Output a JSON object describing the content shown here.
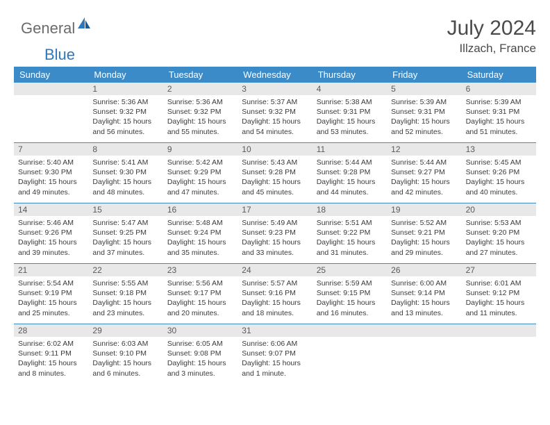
{
  "logo": {
    "text1": "General",
    "text2": "Blue"
  },
  "colors": {
    "header_bg": "#3b8bc9",
    "header_text": "#ffffff",
    "daynum_bg": "#e8e8e8",
    "daynum_text": "#5a5a5a",
    "body_text": "#3a3a3a",
    "title_text": "#4a4a4a",
    "logo_gray": "#6b6b6b",
    "logo_blue": "#2f77ba"
  },
  "title": "July 2024",
  "location": "Illzach, France",
  "day_headers": [
    "Sunday",
    "Monday",
    "Tuesday",
    "Wednesday",
    "Thursday",
    "Friday",
    "Saturday"
  ],
  "weeks": [
    [
      null,
      {
        "n": "1",
        "sr": "5:36 AM",
        "ss": "9:32 PM",
        "dl": "15 hours and 56 minutes."
      },
      {
        "n": "2",
        "sr": "5:36 AM",
        "ss": "9:32 PM",
        "dl": "15 hours and 55 minutes."
      },
      {
        "n": "3",
        "sr": "5:37 AM",
        "ss": "9:32 PM",
        "dl": "15 hours and 54 minutes."
      },
      {
        "n": "4",
        "sr": "5:38 AM",
        "ss": "9:31 PM",
        "dl": "15 hours and 53 minutes."
      },
      {
        "n": "5",
        "sr": "5:39 AM",
        "ss": "9:31 PM",
        "dl": "15 hours and 52 minutes."
      },
      {
        "n": "6",
        "sr": "5:39 AM",
        "ss": "9:31 PM",
        "dl": "15 hours and 51 minutes."
      }
    ],
    [
      {
        "n": "7",
        "sr": "5:40 AM",
        "ss": "9:30 PM",
        "dl": "15 hours and 49 minutes."
      },
      {
        "n": "8",
        "sr": "5:41 AM",
        "ss": "9:30 PM",
        "dl": "15 hours and 48 minutes."
      },
      {
        "n": "9",
        "sr": "5:42 AM",
        "ss": "9:29 PM",
        "dl": "15 hours and 47 minutes."
      },
      {
        "n": "10",
        "sr": "5:43 AM",
        "ss": "9:28 PM",
        "dl": "15 hours and 45 minutes."
      },
      {
        "n": "11",
        "sr": "5:44 AM",
        "ss": "9:28 PM",
        "dl": "15 hours and 44 minutes."
      },
      {
        "n": "12",
        "sr": "5:44 AM",
        "ss": "9:27 PM",
        "dl": "15 hours and 42 minutes."
      },
      {
        "n": "13",
        "sr": "5:45 AM",
        "ss": "9:26 PM",
        "dl": "15 hours and 40 minutes."
      }
    ],
    [
      {
        "n": "14",
        "sr": "5:46 AM",
        "ss": "9:26 PM",
        "dl": "15 hours and 39 minutes."
      },
      {
        "n": "15",
        "sr": "5:47 AM",
        "ss": "9:25 PM",
        "dl": "15 hours and 37 minutes."
      },
      {
        "n": "16",
        "sr": "5:48 AM",
        "ss": "9:24 PM",
        "dl": "15 hours and 35 minutes."
      },
      {
        "n": "17",
        "sr": "5:49 AM",
        "ss": "9:23 PM",
        "dl": "15 hours and 33 minutes."
      },
      {
        "n": "18",
        "sr": "5:51 AM",
        "ss": "9:22 PM",
        "dl": "15 hours and 31 minutes."
      },
      {
        "n": "19",
        "sr": "5:52 AM",
        "ss": "9:21 PM",
        "dl": "15 hours and 29 minutes."
      },
      {
        "n": "20",
        "sr": "5:53 AM",
        "ss": "9:20 PM",
        "dl": "15 hours and 27 minutes."
      }
    ],
    [
      {
        "n": "21",
        "sr": "5:54 AM",
        "ss": "9:19 PM",
        "dl": "15 hours and 25 minutes."
      },
      {
        "n": "22",
        "sr": "5:55 AM",
        "ss": "9:18 PM",
        "dl": "15 hours and 23 minutes."
      },
      {
        "n": "23",
        "sr": "5:56 AM",
        "ss": "9:17 PM",
        "dl": "15 hours and 20 minutes."
      },
      {
        "n": "24",
        "sr": "5:57 AM",
        "ss": "9:16 PM",
        "dl": "15 hours and 18 minutes."
      },
      {
        "n": "25",
        "sr": "5:59 AM",
        "ss": "9:15 PM",
        "dl": "15 hours and 16 minutes."
      },
      {
        "n": "26",
        "sr": "6:00 AM",
        "ss": "9:14 PM",
        "dl": "15 hours and 13 minutes."
      },
      {
        "n": "27",
        "sr": "6:01 AM",
        "ss": "9:12 PM",
        "dl": "15 hours and 11 minutes."
      }
    ],
    [
      {
        "n": "28",
        "sr": "6:02 AM",
        "ss": "9:11 PM",
        "dl": "15 hours and 8 minutes."
      },
      {
        "n": "29",
        "sr": "6:03 AM",
        "ss": "9:10 PM",
        "dl": "15 hours and 6 minutes."
      },
      {
        "n": "30",
        "sr": "6:05 AM",
        "ss": "9:08 PM",
        "dl": "15 hours and 3 minutes."
      },
      {
        "n": "31",
        "sr": "6:06 AM",
        "ss": "9:07 PM",
        "dl": "15 hours and 1 minute."
      },
      null,
      null,
      null
    ]
  ],
  "labels": {
    "sunrise": "Sunrise:",
    "sunset": "Sunset:",
    "daylight": "Daylight:"
  }
}
